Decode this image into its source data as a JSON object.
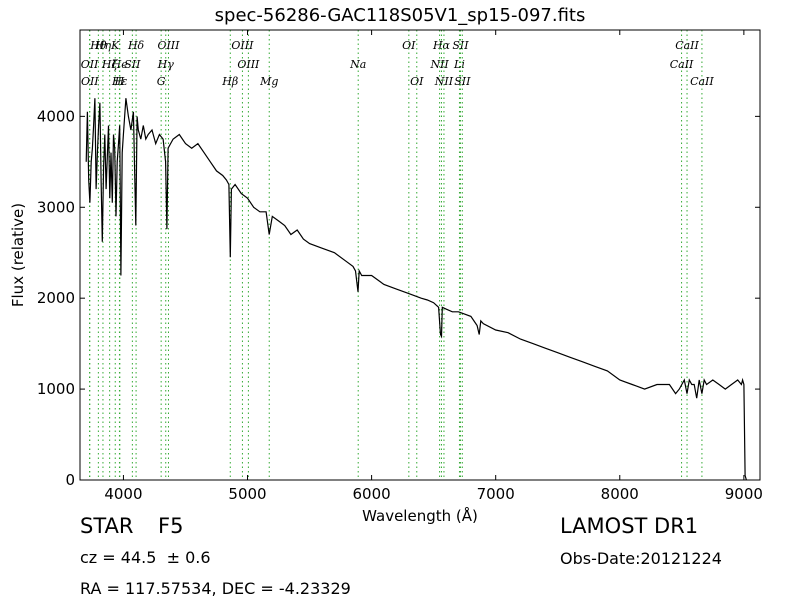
{
  "chart_data": {
    "type": "line",
    "title": "spec-56286-GAC118S05V1_sp15-097.fits",
    "xlabel": "Wavelength (Å)",
    "ylabel": "Flux (relative)",
    "xlim": [
      3650,
      9130
    ],
    "ylim": [
      0,
      4950
    ],
    "xticks": [
      4000,
      5000,
      6000,
      7000,
      8000,
      9000
    ],
    "yticks": [
      0,
      1000,
      2000,
      3000,
      4000
    ],
    "grid": false,
    "series": [
      {
        "line_color": "#000000",
        "x": [
          3700,
          3710,
          3720,
          3730,
          3740,
          3750,
          3760,
          3770,
          3780,
          3790,
          3800,
          3810,
          3820,
          3830,
          3840,
          3850,
          3860,
          3870,
          3880,
          3890,
          3900,
          3910,
          3920,
          3930,
          3940,
          3950,
          3960,
          3970,
          3980,
          3990,
          4000,
          4020,
          4040,
          4060,
          4080,
          4100,
          4110,
          4120,
          4140,
          4160,
          4180,
          4200,
          4230,
          4260,
          4290,
          4320,
          4340,
          4350,
          4360,
          4380,
          4400,
          4450,
          4500,
          4550,
          4600,
          4650,
          4700,
          4750,
          4800,
          4830,
          4850,
          4861,
          4870,
          4900,
          4950,
          5000,
          5050,
          5100,
          5150,
          5175,
          5200,
          5250,
          5300,
          5350,
          5400,
          5450,
          5500,
          5600,
          5700,
          5800,
          5850,
          5870,
          5890,
          5900,
          5920,
          6000,
          6100,
          6200,
          6300,
          6400,
          6450,
          6500,
          6540,
          6555,
          6563,
          6570,
          6600,
          6650,
          6700,
          6800,
          6850,
          6867,
          6880,
          6900,
          7000,
          7100,
          7200,
          7300,
          7400,
          7500,
          7600,
          7700,
          7800,
          7900,
          8000,
          8100,
          8200,
          8300,
          8400,
          8450,
          8480,
          8500,
          8520,
          8542,
          8560,
          8580,
          8600,
          8620,
          8640,
          8662,
          8680,
          8700,
          8750,
          8800,
          8850,
          8900,
          8950,
          8980,
          8990,
          9000,
          9010,
          9020
        ],
        "y": [
          3500,
          4050,
          3300,
          3050,
          3500,
          3650,
          3900,
          4200,
          3200,
          3600,
          3900,
          4150,
          3300,
          2620,
          3450,
          3800,
          3200,
          3550,
          3900,
          3100,
          3600,
          3050,
          3800,
          3650,
          2900,
          3500,
          3700,
          3900,
          2250,
          3600,
          3800,
          4200,
          4000,
          3850,
          4050,
          2800,
          4000,
          3850,
          3750,
          3900,
          3750,
          3800,
          3850,
          3700,
          3800,
          3750,
          3500,
          2760,
          3650,
          3700,
          3750,
          3800,
          3700,
          3650,
          3700,
          3600,
          3500,
          3400,
          3350,
          3300,
          3250,
          2450,
          3200,
          3250,
          3150,
          3100,
          3000,
          2950,
          2950,
          2700,
          2900,
          2850,
          2800,
          2700,
          2750,
          2650,
          2600,
          2550,
          2500,
          2400,
          2350,
          2300,
          2070,
          2300,
          2250,
          2250,
          2150,
          2100,
          2050,
          2000,
          1980,
          1950,
          1900,
          1600,
          1580,
          1900,
          1880,
          1850,
          1850,
          1800,
          1700,
          1600,
          1750,
          1720,
          1650,
          1620,
          1550,
          1500,
          1450,
          1400,
          1350,
          1300,
          1250,
          1200,
          1100,
          1050,
          1000,
          1050,
          1050,
          950,
          1000,
          1050,
          1100,
          950,
          1100,
          1050,
          1050,
          900,
          1100,
          950,
          1100,
          1050,
          1100,
          1050,
          1000,
          1050,
          1100,
          1050,
          1100,
          1050,
          50,
          0
        ]
      }
    ],
    "lines": [
      {
        "label": "Hθ",
        "x": 3798
      },
      {
        "label": "Hη",
        "x": 3835
      },
      {
        "label": "K",
        "x": 3934
      },
      {
        "label": "Hδ",
        "x": 4102
      },
      {
        "label": "OIII",
        "x": 4363
      },
      {
        "label": "OIII",
        "x": 4959
      },
      {
        "label": "OI",
        "x": 6300
      },
      {
        "label": "Hα",
        "x": 6563
      },
      {
        "label": "SII",
        "x": 6716
      },
      {
        "label": "CaII",
        "x": 8542
      },
      {
        "label": "OII",
        "x": 3727
      },
      {
        "label": "Hζ",
        "x": 3889
      },
      {
        "label": "He",
        "x": 3970
      },
      {
        "label": "SII",
        "x": 4072
      },
      {
        "label": "Hγ",
        "x": 4341
      },
      {
        "label": "OIII",
        "x": 5007
      },
      {
        "label": "Na",
        "x": 5892
      },
      {
        "label": "NII",
        "x": 6548
      },
      {
        "label": "Li",
        "x": 6708
      },
      {
        "label": "CaII",
        "x": 8498
      },
      {
        "label": "OII",
        "x": 3729
      },
      {
        "label": "Hε",
        "x": 3970
      },
      {
        "label": "H",
        "x": 3968
      },
      {
        "label": "G",
        "x": 4304
      },
      {
        "label": "Hβ",
        "x": 4861
      },
      {
        "label": "Mg",
        "x": 5175
      },
      {
        "label": "OI",
        "x": 6364
      },
      {
        "label": "NII",
        "x": 6583
      },
      {
        "label": "SII",
        "x": 6731
      },
      {
        "label": "CaII",
        "x": 8662
      }
    ]
  },
  "info": {
    "object_class": "STAR",
    "subclass": "F5",
    "survey": "LAMOST DR1",
    "cz_text": "cz = 44.5  ± 0.6",
    "obs_date": "Obs-Date:20121224",
    "coords": "RA = 117.57534, DEC = -4.23329"
  },
  "colors": {
    "spectrum": "#000000",
    "line_markers": "#33aa33"
  }
}
